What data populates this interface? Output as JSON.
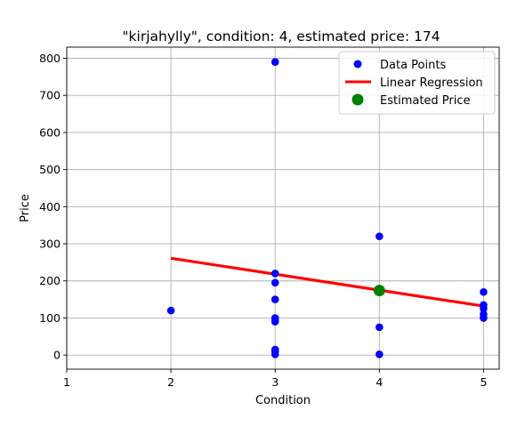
{
  "chart_data": {
    "type": "scatter",
    "title": "\"kirjahylly\", condition: 4, estimated price: 174",
    "xlabel": "Condition",
    "ylabel": "Price",
    "xlim": [
      1,
      5.15
    ],
    "ylim": [
      -38,
      830
    ],
    "xticks": [
      1,
      2,
      3,
      4,
      5
    ],
    "yticks": [
      0,
      100,
      200,
      300,
      400,
      500,
      600,
      700,
      800
    ],
    "grid": true,
    "legend_position": "top-right",
    "series": [
      {
        "name": "Data Points",
        "kind": "scatter",
        "color": "#0000ff",
        "points": [
          {
            "x": 2,
            "y": 120
          },
          {
            "x": 3,
            "y": 790
          },
          {
            "x": 3,
            "y": 220
          },
          {
            "x": 3,
            "y": 195
          },
          {
            "x": 3,
            "y": 150
          },
          {
            "x": 3,
            "y": 100
          },
          {
            "x": 3,
            "y": 95
          },
          {
            "x": 3,
            "y": 90
          },
          {
            "x": 3,
            "y": 15
          },
          {
            "x": 3,
            "y": 10
          },
          {
            "x": 3,
            "y": 2
          },
          {
            "x": 4,
            "y": 320
          },
          {
            "x": 4,
            "y": 75
          },
          {
            "x": 4,
            "y": 2
          },
          {
            "x": 5,
            "y": 170
          },
          {
            "x": 5,
            "y": 135
          },
          {
            "x": 5,
            "y": 125
          },
          {
            "x": 5,
            "y": 110
          },
          {
            "x": 5,
            "y": 100
          }
        ]
      },
      {
        "name": "Linear Regression",
        "kind": "line",
        "color": "#ff0000",
        "points": [
          {
            "x": 2,
            "y": 261
          },
          {
            "x": 5,
            "y": 132
          }
        ]
      },
      {
        "name": "Estimated Price",
        "kind": "scatter",
        "color": "#008000",
        "points": [
          {
            "x": 4,
            "y": 174
          }
        ]
      }
    ]
  }
}
